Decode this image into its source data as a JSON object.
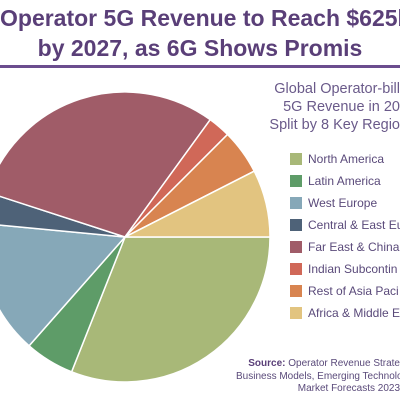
{
  "chart_data": {
    "type": "pie",
    "title_line1": "Operator 5G Revenue to Reach $625b",
    "title_line2": "by 2027, as 6G Shows Promis",
    "subtitle_lines": [
      "Global Operator-bill",
      "5G Revenue in 20",
      "Split by 8 Key Regio"
    ],
    "slices": [
      {
        "label": "North America",
        "value": 31.0,
        "color": "#a8b878"
      },
      {
        "label": "Latin America",
        "value": 5.5,
        "color": "#5e9c68"
      },
      {
        "label": "West Europe",
        "value": 15.0,
        "color": "#86a8b8"
      },
      {
        "label": "Central & East Eu",
        "value": 3.5,
        "color": "#4e6278"
      },
      {
        "label": "Far East & China",
        "value": 30.0,
        "color": "#a05c68"
      },
      {
        "label": "Indian Subcontin",
        "value": 2.5,
        "color": "#d06858"
      },
      {
        "label": "Rest of Asia Paci",
        "value": 5.0,
        "color": "#d88450"
      },
      {
        "label": "Africa & Middle E",
        "value": 7.5,
        "color": "#e2c480"
      }
    ],
    "legend_placement": "right"
  },
  "source": {
    "label": "Source:",
    "line1": "Operator Revenue Strate",
    "line2": "Business Models, Emerging Technolog",
    "line3": "Market Forecasts 2023"
  }
}
